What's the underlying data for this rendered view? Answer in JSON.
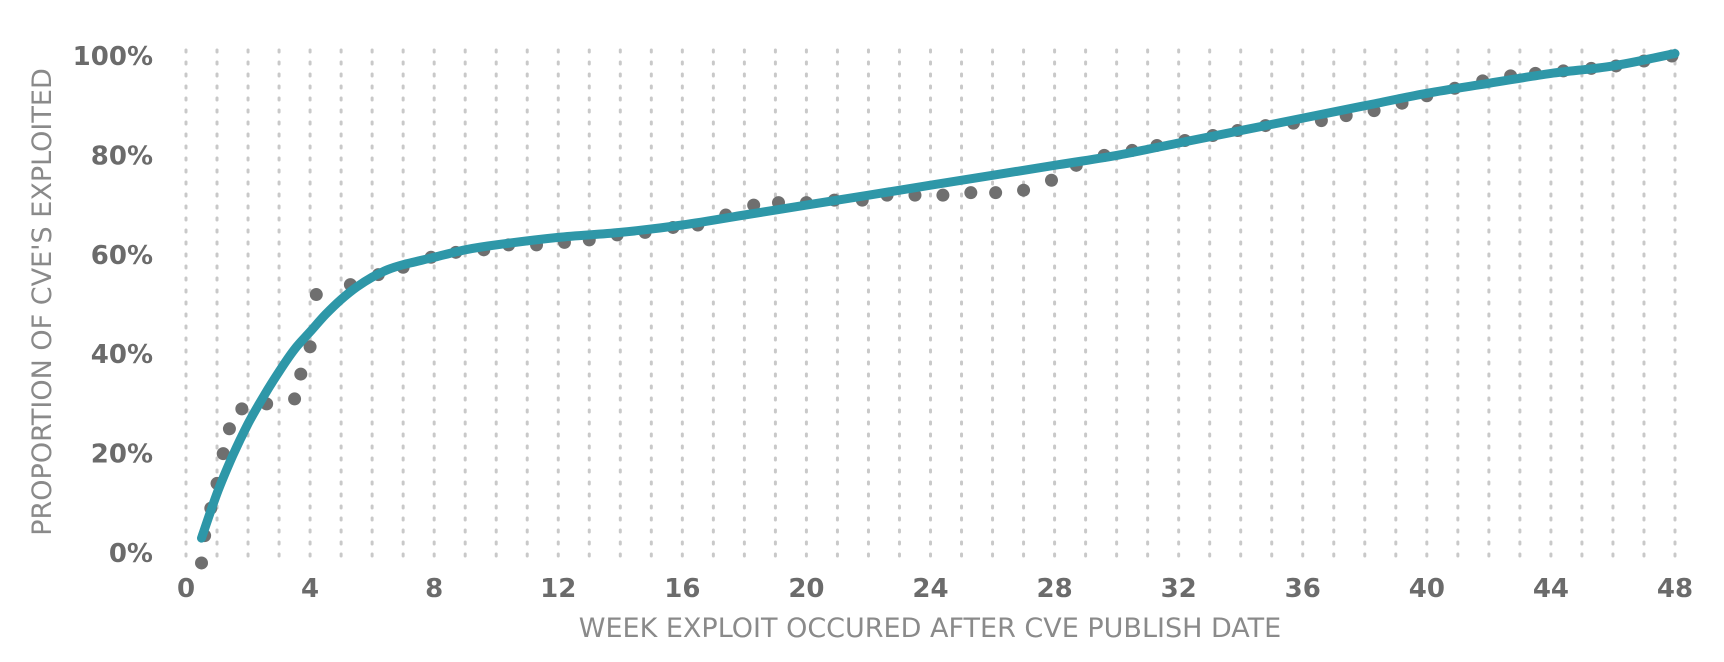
{
  "chart_data": {
    "type": "scatter",
    "xlabel": "WEEK EXPLOIT OCCURED AFTER CVE PUBLISH DATE",
    "ylabel": "PROPORTION OF CVE'S EXPLOITED",
    "xlim": [
      0,
      48
    ],
    "ylim": [
      0,
      100
    ],
    "x_ticks": [
      "0",
      "4",
      "8",
      "12",
      "16",
      "20",
      "24",
      "28",
      "32",
      "36",
      "40",
      "44",
      "48"
    ],
    "y_ticks": [
      "0%",
      "20%",
      "40%",
      "60%",
      "80%",
      "100%"
    ],
    "grid": "vertical dotted lines every week",
    "colors": {
      "points": "#6f6f6f",
      "trend": "#2e97a8",
      "grid": "#c9c9c9",
      "text": "#6b6b6b"
    },
    "series": [
      {
        "kind": "points",
        "x": [
          0.5,
          0.6,
          0.8,
          1.0,
          1.2,
          1.4,
          1.8,
          2.6,
          3.5,
          3.7,
          4.0,
          4.2,
          5.3,
          6.2,
          7.0,
          7.9,
          8.7,
          9.6,
          10.4,
          11.3,
          12.2,
          13.0,
          13.9,
          14.8,
          15.7,
          16.5,
          17.4,
          18.3,
          19.1,
          20.0,
          20.9,
          21.8,
          22.6,
          23.5,
          24.4,
          25.3,
          26.1,
          27.0,
          27.9,
          28.7,
          29.6,
          30.5,
          31.3,
          32.2,
          33.1,
          33.9,
          34.8,
          35.7,
          36.6,
          37.4,
          38.3,
          39.2,
          40.0,
          40.9,
          41.8,
          42.7,
          43.5,
          44.4,
          45.3,
          46.1,
          47.0,
          47.9
        ],
        "y": [
          -2,
          3.5,
          9,
          14,
          20,
          25,
          29,
          30,
          31,
          36,
          41.5,
          52,
          54,
          56,
          57.5,
          59.5,
          60.5,
          61,
          62,
          62,
          62.5,
          63,
          64,
          64.5,
          65.5,
          66,
          68,
          70,
          70.5,
          70.5,
          71,
          71,
          72,
          72,
          72,
          72.5,
          72.5,
          73,
          75,
          78,
          80,
          81,
          82,
          83,
          84,
          85,
          86,
          86.5,
          87,
          88,
          89,
          90.5,
          92,
          93.5,
          95,
          96,
          96.5,
          97,
          97.5,
          98,
          99,
          100
        ]
      },
      {
        "kind": "fitted-curve",
        "x": [
          0.5,
          1,
          1.5,
          2,
          2.5,
          3,
          3.5,
          4,
          4.5,
          5,
          5.5,
          6,
          6.5,
          7,
          8,
          9,
          10,
          12,
          14,
          16,
          18,
          20,
          22,
          24,
          26,
          28,
          30,
          32,
          34,
          36,
          38,
          40,
          42,
          44,
          46,
          48
        ],
        "y": [
          3,
          12,
          19.5,
          26,
          31.5,
          36.5,
          41,
          44.5,
          48,
          51,
          53.5,
          55.5,
          57,
          58,
          59.5,
          61,
          62,
          63.5,
          64.5,
          66,
          68,
          70,
          72,
          74,
          76,
          78,
          80,
          82.5,
          85,
          87.5,
          90,
          92.5,
          94.5,
          96.5,
          98,
          100.5
        ]
      }
    ]
  }
}
